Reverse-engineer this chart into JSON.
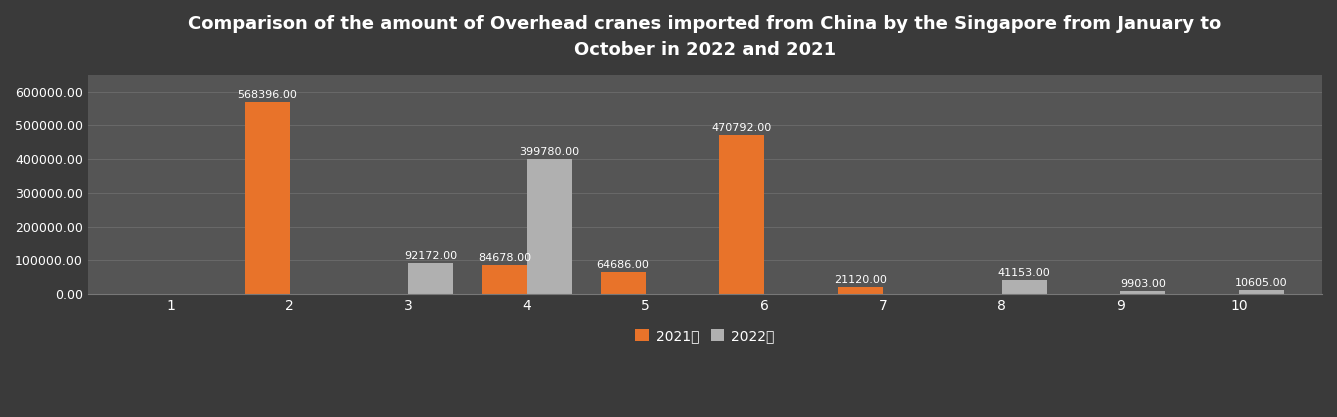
{
  "title": "Comparison of the amount of Overhead cranes imported from China by the Singapore from January to\nOctober in 2022 and 2021",
  "categories": [
    "1",
    "2",
    "3",
    "4",
    "5",
    "6",
    "7",
    "8",
    "9",
    "10"
  ],
  "values_2021": [
    0,
    568396.0,
    0,
    84678.0,
    64686.0,
    470792.0,
    21120.0,
    0,
    0,
    0
  ],
  "values_2022": [
    0,
    0,
    92172.0,
    399780.0,
    0,
    0,
    0,
    41153.0,
    9903.0,
    10605.0
  ],
  "color_2021": "#E8732A",
  "color_2022": "#B0B0B0",
  "legend_2021": "2021年",
  "legend_2022": "2022年",
  "bg_outer": "#3a3a3a",
  "bg_inner": "#555555",
  "text_color": "#ffffff",
  "grid_color": "#777777",
  "ylim": [
    0,
    650000
  ],
  "yticks": [
    0,
    100000,
    200000,
    300000,
    400000,
    500000,
    600000
  ],
  "bar_width": 0.38,
  "label_fontsize": 8,
  "title_fontsize": 13
}
